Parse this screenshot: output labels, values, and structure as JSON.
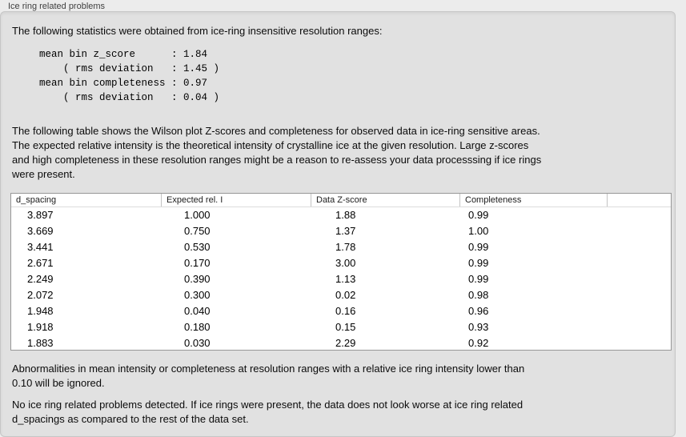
{
  "window": {
    "group_title": "Ice ring related problems"
  },
  "intro": {
    "text": "The following statistics were obtained from ice-ring insensitive resolution ranges:",
    "stats_block": "mean bin z_score      : 1.84\n    ( rms deviation   : 1.45 )\nmean bin completeness : 0.97\n    ( rms deviation   : 0.04 )"
  },
  "description": {
    "text": "The following table shows the Wilson plot Z-scores and completeness for observed data in ice-ring sensitive areas.\nThe expected relative intensity is the theoretical intensity of crystalline ice at the given resolution. Large z-scores\nand high completeness in these resolution ranges might be a reason to re-assess your data processsing if ice rings\nwere present."
  },
  "table": {
    "columns": [
      "d_spacing",
      "Expected rel. I",
      "Data Z-score",
      "Completeness"
    ],
    "rows": [
      [
        "3.897",
        "1.000",
        "1.88",
        "0.99"
      ],
      [
        "3.669",
        "0.750",
        "1.37",
        "1.00"
      ],
      [
        "3.441",
        "0.530",
        "1.78",
        "0.99"
      ],
      [
        "2.671",
        "0.170",
        "3.00",
        "0.99"
      ],
      [
        "2.249",
        "0.390",
        "1.13",
        "0.99"
      ],
      [
        "2.072",
        "0.300",
        "0.02",
        "0.98"
      ],
      [
        "1.948",
        "0.040",
        "0.16",
        "0.96"
      ],
      [
        "1.918",
        "0.180",
        "0.15",
        "0.93"
      ],
      [
        "1.883",
        "0.030",
        "2.29",
        "0.92"
      ]
    ]
  },
  "notes": {
    "ignore_note": "Abnormalities in mean intensity or completeness at resolution ranges with a relative ice ring intensity lower than\n0.10 will be ignored.",
    "conclusion": "No ice ring related problems detected. If ice rings were present, the data does not look worse at ice ring related\nd_spacings as compared to the rest of the data set."
  }
}
